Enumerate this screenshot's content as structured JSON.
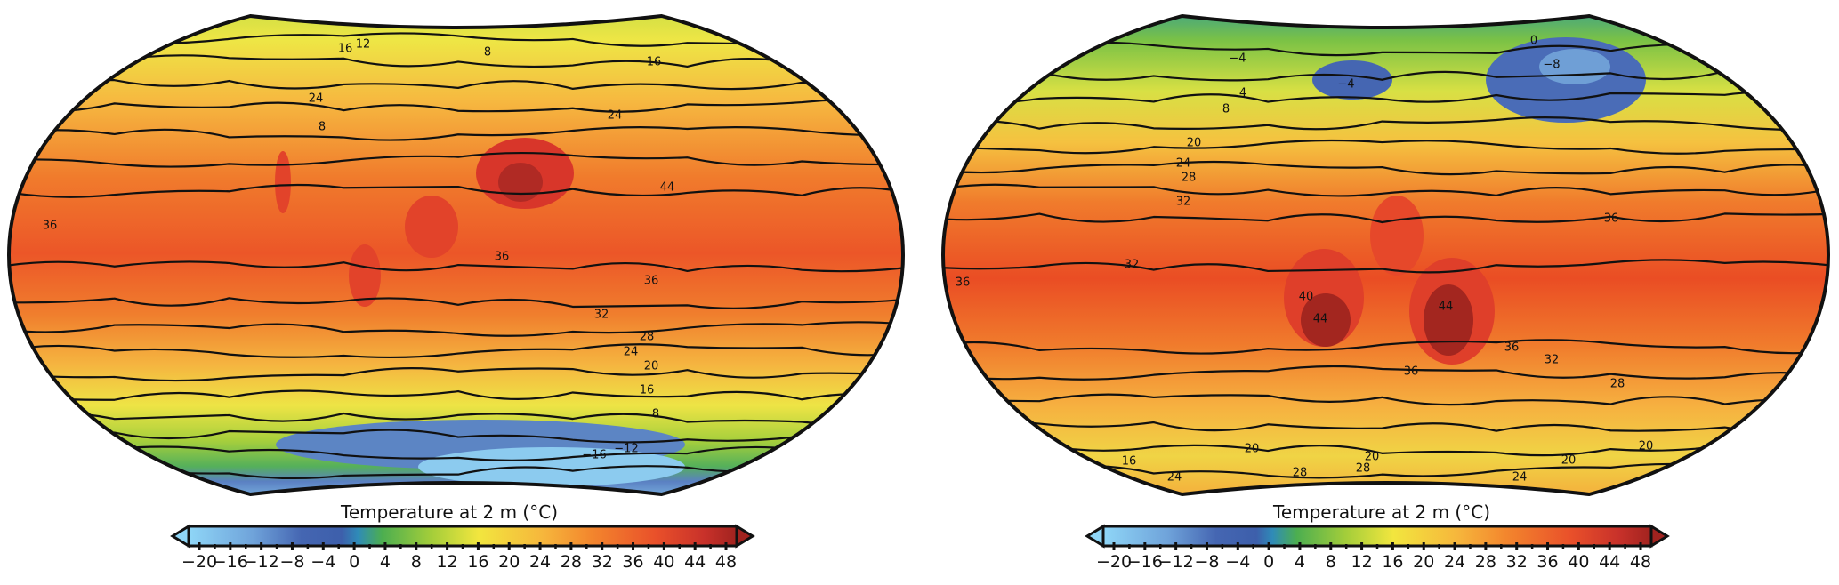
{
  "colorscale": {
    "min": -20,
    "max": 48,
    "stops": [
      {
        "value": -20,
        "color": "#8fd6f7"
      },
      {
        "value": -12,
        "color": "#6fa3da"
      },
      {
        "value": -6,
        "color": "#4566b2"
      },
      {
        "value": -1,
        "color": "#3d5fab"
      },
      {
        "value": 1,
        "color": "#2f8bb8"
      },
      {
        "value": 4,
        "color": "#4cae50"
      },
      {
        "value": 10,
        "color": "#a2cd3a"
      },
      {
        "value": 16,
        "color": "#f2e63e"
      },
      {
        "value": 24,
        "color": "#f6b63c"
      },
      {
        "value": 30,
        "color": "#f3862d"
      },
      {
        "value": 38,
        "color": "#e9502a"
      },
      {
        "value": 44,
        "color": "#c8312a"
      },
      {
        "value": 48,
        "color": "#a1231f"
      }
    ]
  },
  "panels": [
    {
      "colorbar": {
        "title": "Temperature at 2 m (°C)",
        "ticks": [
          "−20",
          "−16",
          "−12",
          "−8",
          "−4",
          "0",
          "4",
          "8",
          "12",
          "16",
          "20",
          "24",
          "28",
          "32",
          "36",
          "40",
          "44",
          "48"
        ],
        "extend": "both"
      },
      "contour_labels": [
        "12",
        "8",
        "16",
        "16",
        "24",
        "24",
        "8",
        "36",
        "36",
        "36",
        "32",
        "28",
        "24",
        "20",
        "16",
        "8",
        "−12",
        "−16",
        "44"
      ]
    },
    {
      "colorbar": {
        "title": "Temperature at 2 m (°C)",
        "ticks": [
          "−20",
          "−16",
          "−12",
          "−8",
          "−4",
          "0",
          "4",
          "8",
          "12",
          "16",
          "20",
          "24",
          "28",
          "32",
          "36",
          "40",
          "44",
          "48"
        ],
        "extend": "both"
      },
      "contour_labels": [
        "−4",
        "−4",
        "−8",
        "0",
        "4",
        "8",
        "20",
        "24",
        "28",
        "32",
        "32",
        "36",
        "40",
        "44",
        "44",
        "36",
        "36",
        "36",
        "32",
        "28",
        "16",
        "20",
        "20",
        "28",
        "28",
        "24",
        "24",
        "20",
        "20"
      ]
    }
  ]
}
